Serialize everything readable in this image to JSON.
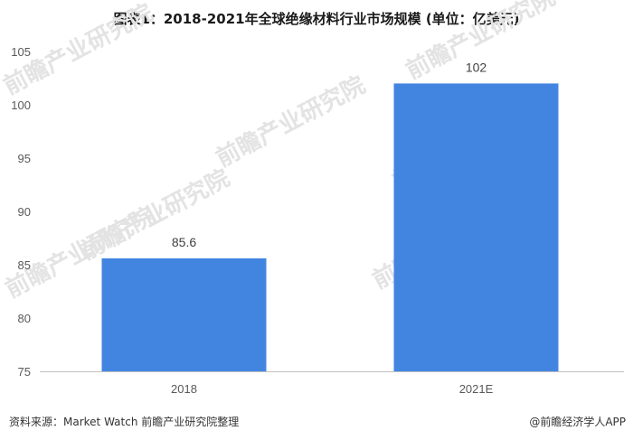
{
  "chart_data": {
    "type": "bar",
    "title": "图表1：2018-2021年全球绝缘材料行业市场规模 (单位：亿美元)",
    "categories": [
      "2018",
      "2021E"
    ],
    "values": [
      85.6,
      102
    ],
    "value_labels": [
      "85.6",
      "102"
    ],
    "ylim": [
      75,
      105
    ],
    "yticks": [
      75,
      80,
      85,
      90,
      95,
      100,
      105
    ],
    "xlabel": "",
    "ylabel": "",
    "grid": false,
    "bar_color": "#4285e0"
  },
  "footer": {
    "source": "资料来源：Market Watch 前瞻产业研究院整理",
    "credit": "@前瞻经济学人APP"
  },
  "watermark": {
    "text": "前瞻产业研究院"
  }
}
